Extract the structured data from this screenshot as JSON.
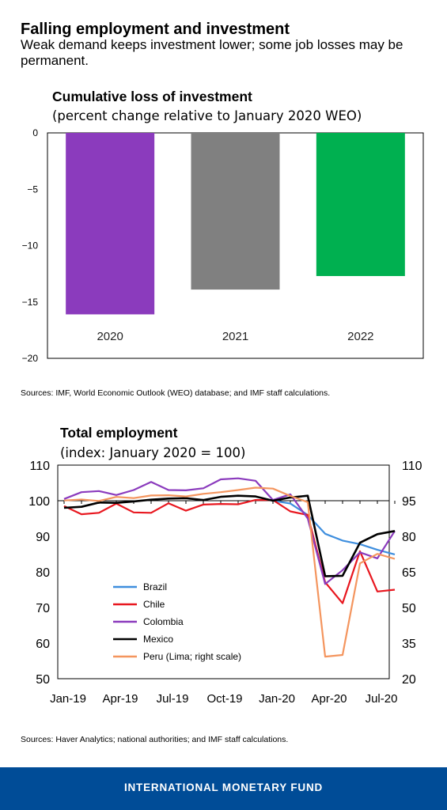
{
  "header": {
    "title": "Falling employment and investment",
    "subtitle": "Weak demand keeps investment lower; some job losses may be permanent."
  },
  "chart1": {
    "title": "Cumulative loss of investment",
    "subtitle": "(percent change relative to January 2020 WEO)",
    "source": "Sources: IMF, World Economic Outlook (WEO) database; and IMF staff calculations."
  },
  "chart2": {
    "title": "Total employment",
    "subtitle": "(index: January 2020 = 100)",
    "source": "Sources: Haver Analytics; national authorities; and IMF staff calculations."
  },
  "footer": {
    "label": "INTERNATIONAL MONETARY FUND"
  },
  "chart_data": [
    {
      "type": "bar",
      "title": "Cumulative loss of investment",
      "subtitle": "(percent change relative to January 2020 WEO)",
      "categories": [
        "2020",
        "2021",
        "2022"
      ],
      "values": [
        -16.1,
        -13.9,
        -12.7
      ],
      "colors": [
        "#8b3bbd",
        "#808080",
        "#00b050"
      ],
      "ylim": [
        -20,
        0
      ],
      "yticks": [
        0,
        -5,
        -10,
        -15,
        -20
      ],
      "ytick_labels": [
        "0",
        "−5",
        "−10",
        "−15",
        "−20"
      ],
      "grid": false
    },
    {
      "type": "line",
      "title": "Total employment",
      "subtitle": "(index: January 2020 = 100)",
      "x": [
        "2019-01",
        "2019-02",
        "2019-03",
        "2019-04",
        "2019-05",
        "2019-06",
        "2019-07",
        "2019-08",
        "2019-09",
        "2019-10",
        "2019-11",
        "2019-12",
        "2020-01",
        "2020-02",
        "2020-03",
        "2020-04",
        "2020-05",
        "2020-06",
        "2020-07",
        "2020-08"
      ],
      "xtick_labels": [
        "Jan-19",
        "Apr-19",
        "Jul-19",
        "Oct-19",
        "Jan-20",
        "Apr-20",
        "Jul-20"
      ],
      "ylim_left": [
        50,
        110
      ],
      "yticks_left": [
        50,
        60,
        70,
        80,
        90,
        100,
        110
      ],
      "ylim_right": [
        20,
        110
      ],
      "yticks_right": [
        20,
        35,
        50,
        65,
        80,
        95,
        110
      ],
      "reference_line": 100,
      "series": [
        {
          "name": "Brazil",
          "color": "#3e8ede",
          "axis": "left",
          "values": [
            null,
            null,
            null,
            null,
            null,
            null,
            null,
            null,
            null,
            null,
            null,
            null,
            100,
            99.2,
            96.0,
            90.7,
            88.8,
            87.8,
            86.2,
            84.9
          ]
        },
        {
          "name": "Chile",
          "color": "#e8171f",
          "axis": "left",
          "values": [
            98.5,
            96.2,
            96.6,
            99.2,
            96.7,
            96.6,
            99.3,
            97.2,
            98.9,
            99.1,
            99.0,
            100.2,
            100.2,
            97.0,
            96.0,
            77.1,
            71.2,
            85.8,
            74.5,
            75.0
          ]
        },
        {
          "name": "Colombia",
          "color": "#8b3bbd",
          "axis": "left",
          "values": [
            100.5,
            102.4,
            102.7,
            101.6,
            103.0,
            105.3,
            103.0,
            102.9,
            103.5,
            106.0,
            106.3,
            105.6,
            100.2,
            101.8,
            95.0,
            76.6,
            80.5,
            85.5,
            83.8,
            91.5
          ]
        },
        {
          "name": "Mexico",
          "color": "#000000",
          "axis": "left",
          "values": [
            98.0,
            98.3,
            99.5,
            99.4,
            99.8,
            100.3,
            100.6,
            100.7,
            100.2,
            101.1,
            101.4,
            101.2,
            100.0,
            100.9,
            101.4,
            78.8,
            78.9,
            88.2,
            90.6,
            91.5
          ]
        },
        {
          "name": "Peru (Lima; right scale)",
          "color": "#f4955e",
          "axis": "right",
          "values": [
            95.1,
            95.5,
            94.9,
            96.6,
            96.1,
            97.2,
            97.3,
            96.8,
            97.9,
            98.6,
            99.5,
            100.5,
            100.1,
            97.0,
            94.4,
            29.3,
            30.0,
            68.6,
            72.6,
            70.5
          ]
        }
      ],
      "legend_position": "bottom-left"
    }
  ]
}
